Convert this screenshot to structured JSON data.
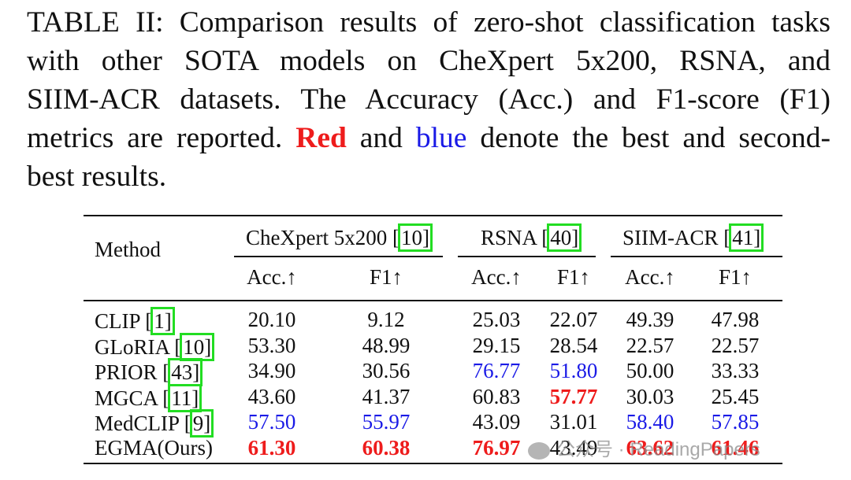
{
  "caption": {
    "lines": [
      "TABLE II: Comparison results of zero-shot classification tasks",
      "with other SOTA models on CheXpert 5x200, RSNA, and",
      "SIIM-ACR datasets. The Accuracy (Acc.) and F1-score (F1)"
    ],
    "line4_pre": "metrics are reported.",
    "red_word": "Red",
    "mid": "and",
    "blue_word": "blue",
    "line4_post": "denote the best and second-",
    "line5": "best results."
  },
  "table": {
    "method_header": "Method",
    "groups": [
      {
        "name": "CheXpert 5x200 [",
        "ref": "10",
        "close": "]"
      },
      {
        "name": "RSNA [",
        "ref": "40",
        "close": "]"
      },
      {
        "name": "SIIM-ACR [",
        "ref": "41",
        "close": "]"
      }
    ],
    "subheaders": [
      "Acc.↑",
      "F1↑",
      "Acc.↑",
      "F1↑",
      "Acc.↑",
      "F1↑"
    ],
    "rows": [
      {
        "method": "CLIP [",
        "ref": "1",
        "close": "]",
        "values": [
          "20.10",
          "9.12",
          "25.03",
          "22.07",
          "49.39",
          "47.98"
        ],
        "styles": [
          "black",
          "black",
          "black",
          "black",
          "black",
          "black"
        ]
      },
      {
        "method": "GLoRIA [",
        "ref": "10",
        "close": "]",
        "values": [
          "53.30",
          "48.99",
          "29.15",
          "28.54",
          "22.57",
          "22.57"
        ],
        "styles": [
          "black",
          "black",
          "black",
          "black",
          "black",
          "black"
        ]
      },
      {
        "method": "PRIOR [",
        "ref": "43",
        "close": "]",
        "values": [
          "34.90",
          "30.56",
          "76.77",
          "51.80",
          "50.00",
          "33.33"
        ],
        "styles": [
          "black",
          "black",
          "blue",
          "blue",
          "black",
          "black"
        ]
      },
      {
        "method": "MGCA [",
        "ref": "11",
        "close": "]",
        "values": [
          "43.60",
          "41.37",
          "60.83",
          "57.77",
          "30.03",
          "25.45"
        ],
        "styles": [
          "black",
          "black",
          "black",
          "red",
          "black",
          "black"
        ]
      },
      {
        "method": "MedCLIP [",
        "ref": "9",
        "close": "]",
        "values": [
          "57.50",
          "55.97",
          "43.09",
          "31.01",
          "58.40",
          "57.85"
        ],
        "styles": [
          "blue",
          "blue",
          "black",
          "black",
          "blue",
          "blue"
        ]
      },
      {
        "method": "EGMA(Ours)",
        "ref": "",
        "close": "",
        "values": [
          "61.30",
          "60.38",
          "76.97",
          "43.49",
          "63.62",
          "61.46"
        ],
        "styles": [
          "red",
          "red",
          "red",
          "black",
          "red",
          "red"
        ]
      }
    ]
  },
  "watermark": {
    "text": "公众号 · ReadingPapers"
  },
  "colors": {
    "red": "#ee1c1c",
    "blue": "#1a1ae6",
    "box": "#22dd22"
  }
}
